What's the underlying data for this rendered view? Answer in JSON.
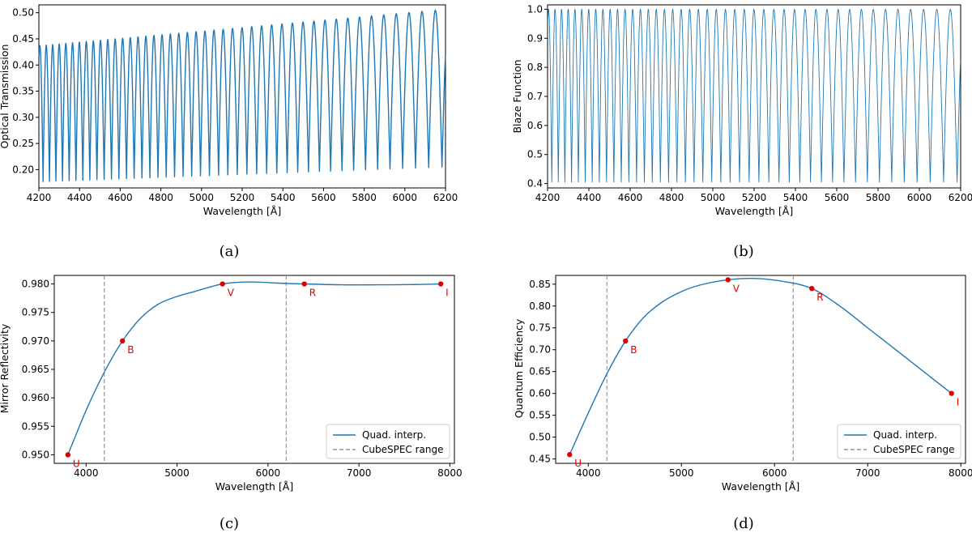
{
  "chart_data": [
    {
      "id": "a",
      "type": "line",
      "panel_label": "(a)",
      "xlabel": "Wavelength [Å]",
      "ylabel": "Optical Transmission",
      "xlim": [
        4200,
        6200
      ],
      "ylim": [
        0.165,
        0.515
      ],
      "xticks": [
        4200,
        4400,
        4600,
        4800,
        5000,
        5200,
        5400,
        5600,
        5800,
        6000,
        6200
      ],
      "yticks": [
        0.2,
        0.25,
        0.3,
        0.35,
        0.4,
        0.45,
        0.5
      ],
      "ytick_decimals": 2,
      "series": [
        {
          "name": "Optical Transmission",
          "kind": "blaze_orders",
          "color": "#1f77b4",
          "first_peak": 4205,
          "last_peak": 6150,
          "num_orders": 44,
          "peak_start": 0.437,
          "peak_end": 0.505,
          "min_start": 0.177,
          "min_end": 0.205
        }
      ]
    },
    {
      "id": "b",
      "type": "line",
      "panel_label": "(b)",
      "xlabel": "Wavelength [Å]",
      "ylabel": "Blaze Function",
      "xlim": [
        4200,
        6200
      ],
      "ylim": [
        0.385,
        1.015
      ],
      "xticks": [
        4200,
        4400,
        4600,
        4800,
        5000,
        5200,
        5400,
        5600,
        5800,
        6000,
        6200
      ],
      "yticks": [
        0.4,
        0.5,
        0.6,
        0.7,
        0.8,
        0.9,
        1.0
      ],
      "ytick_decimals": 1,
      "series": [
        {
          "name": "Blaze Function",
          "kind": "blaze_orders",
          "color": "#1f77b4",
          "first_peak": 4205,
          "last_peak": 6150,
          "num_orders": 44,
          "peak_start": 1.0,
          "peak_end": 1.0,
          "min_start": 0.405,
          "min_end": 0.405
        }
      ]
    },
    {
      "id": "c",
      "type": "line",
      "panel_label": "(c)",
      "xlabel": "Wavelength [Å]",
      "ylabel": "Mirror Reflectivity",
      "xlim": [
        3650,
        8050
      ],
      "ylim": [
        0.9485,
        0.9815
      ],
      "xticks": [
        4000,
        5000,
        6000,
        7000,
        8000
      ],
      "yticks": [
        0.95,
        0.955,
        0.96,
        0.965,
        0.97,
        0.975,
        0.98
      ],
      "ytick_decimals": 3,
      "points": [
        {
          "label": "U",
          "x": 3800,
          "y": 0.95
        },
        {
          "label": "B",
          "x": 4400,
          "y": 0.97
        },
        {
          "label": "V",
          "x": 5500,
          "y": 0.98
        },
        {
          "label": "R",
          "x": 6400,
          "y": 0.98
        },
        {
          "label": "I",
          "x": 7900,
          "y": 0.98
        }
      ],
      "curve": {
        "name": "Quad. interp.",
        "color": "#1f77b4",
        "x": [
          3800,
          4000,
          4200,
          4400,
          4600,
          4800,
          5000,
          5200,
          5500,
          5800,
          6100,
          6400,
          6800,
          7200,
          7600,
          7900
        ],
        "y": [
          0.95,
          0.9578,
          0.9645,
          0.97,
          0.974,
          0.9765,
          0.9778,
          0.9787,
          0.98,
          0.98035,
          0.98015,
          0.98,
          0.97985,
          0.97985,
          0.9799,
          0.98
        ]
      },
      "vlines": [
        4200,
        6200
      ],
      "legend": {
        "location": "lower-right",
        "entries": [
          "Quad. interp.",
          "CubeSPEC range"
        ]
      }
    },
    {
      "id": "d",
      "type": "line",
      "panel_label": "(d)",
      "xlabel": "Wavelength [Å]",
      "ylabel": "Quantum Efficiency",
      "xlim": [
        3650,
        8050
      ],
      "ylim": [
        0.44,
        0.87
      ],
      "xticks": [
        4000,
        5000,
        6000,
        7000,
        8000
      ],
      "yticks": [
        0.45,
        0.5,
        0.55,
        0.6,
        0.65,
        0.7,
        0.75,
        0.8,
        0.85
      ],
      "ytick_decimals": 2,
      "points": [
        {
          "label": "U",
          "x": 3800,
          "y": 0.46
        },
        {
          "label": "B",
          "x": 4400,
          "y": 0.72
        },
        {
          "label": "V",
          "x": 5500,
          "y": 0.86
        },
        {
          "label": "R",
          "x": 6400,
          "y": 0.84
        },
        {
          "label": "I",
          "x": 7900,
          "y": 0.6
        }
      ],
      "curve": {
        "name": "Quad. interp.",
        "color": "#1f77b4",
        "x": [
          3800,
          4000,
          4200,
          4400,
          4600,
          4800,
          5000,
          5200,
          5500,
          5800,
          6100,
          6400,
          6700,
          7000,
          7300,
          7600,
          7900
        ],
        "y": [
          0.46,
          0.555,
          0.645,
          0.72,
          0.775,
          0.81,
          0.833,
          0.848,
          0.86,
          0.863,
          0.856,
          0.84,
          0.8,
          0.75,
          0.7,
          0.65,
          0.6
        ]
      },
      "vlines": [
        4200,
        6200
      ],
      "legend": {
        "location": "lower-right",
        "entries": [
          "Quad. interp.",
          "CubeSPEC range"
        ]
      }
    }
  ],
  "colors": {
    "line": "#1f77b4",
    "points": "#e00000",
    "vline": "#808080"
  }
}
